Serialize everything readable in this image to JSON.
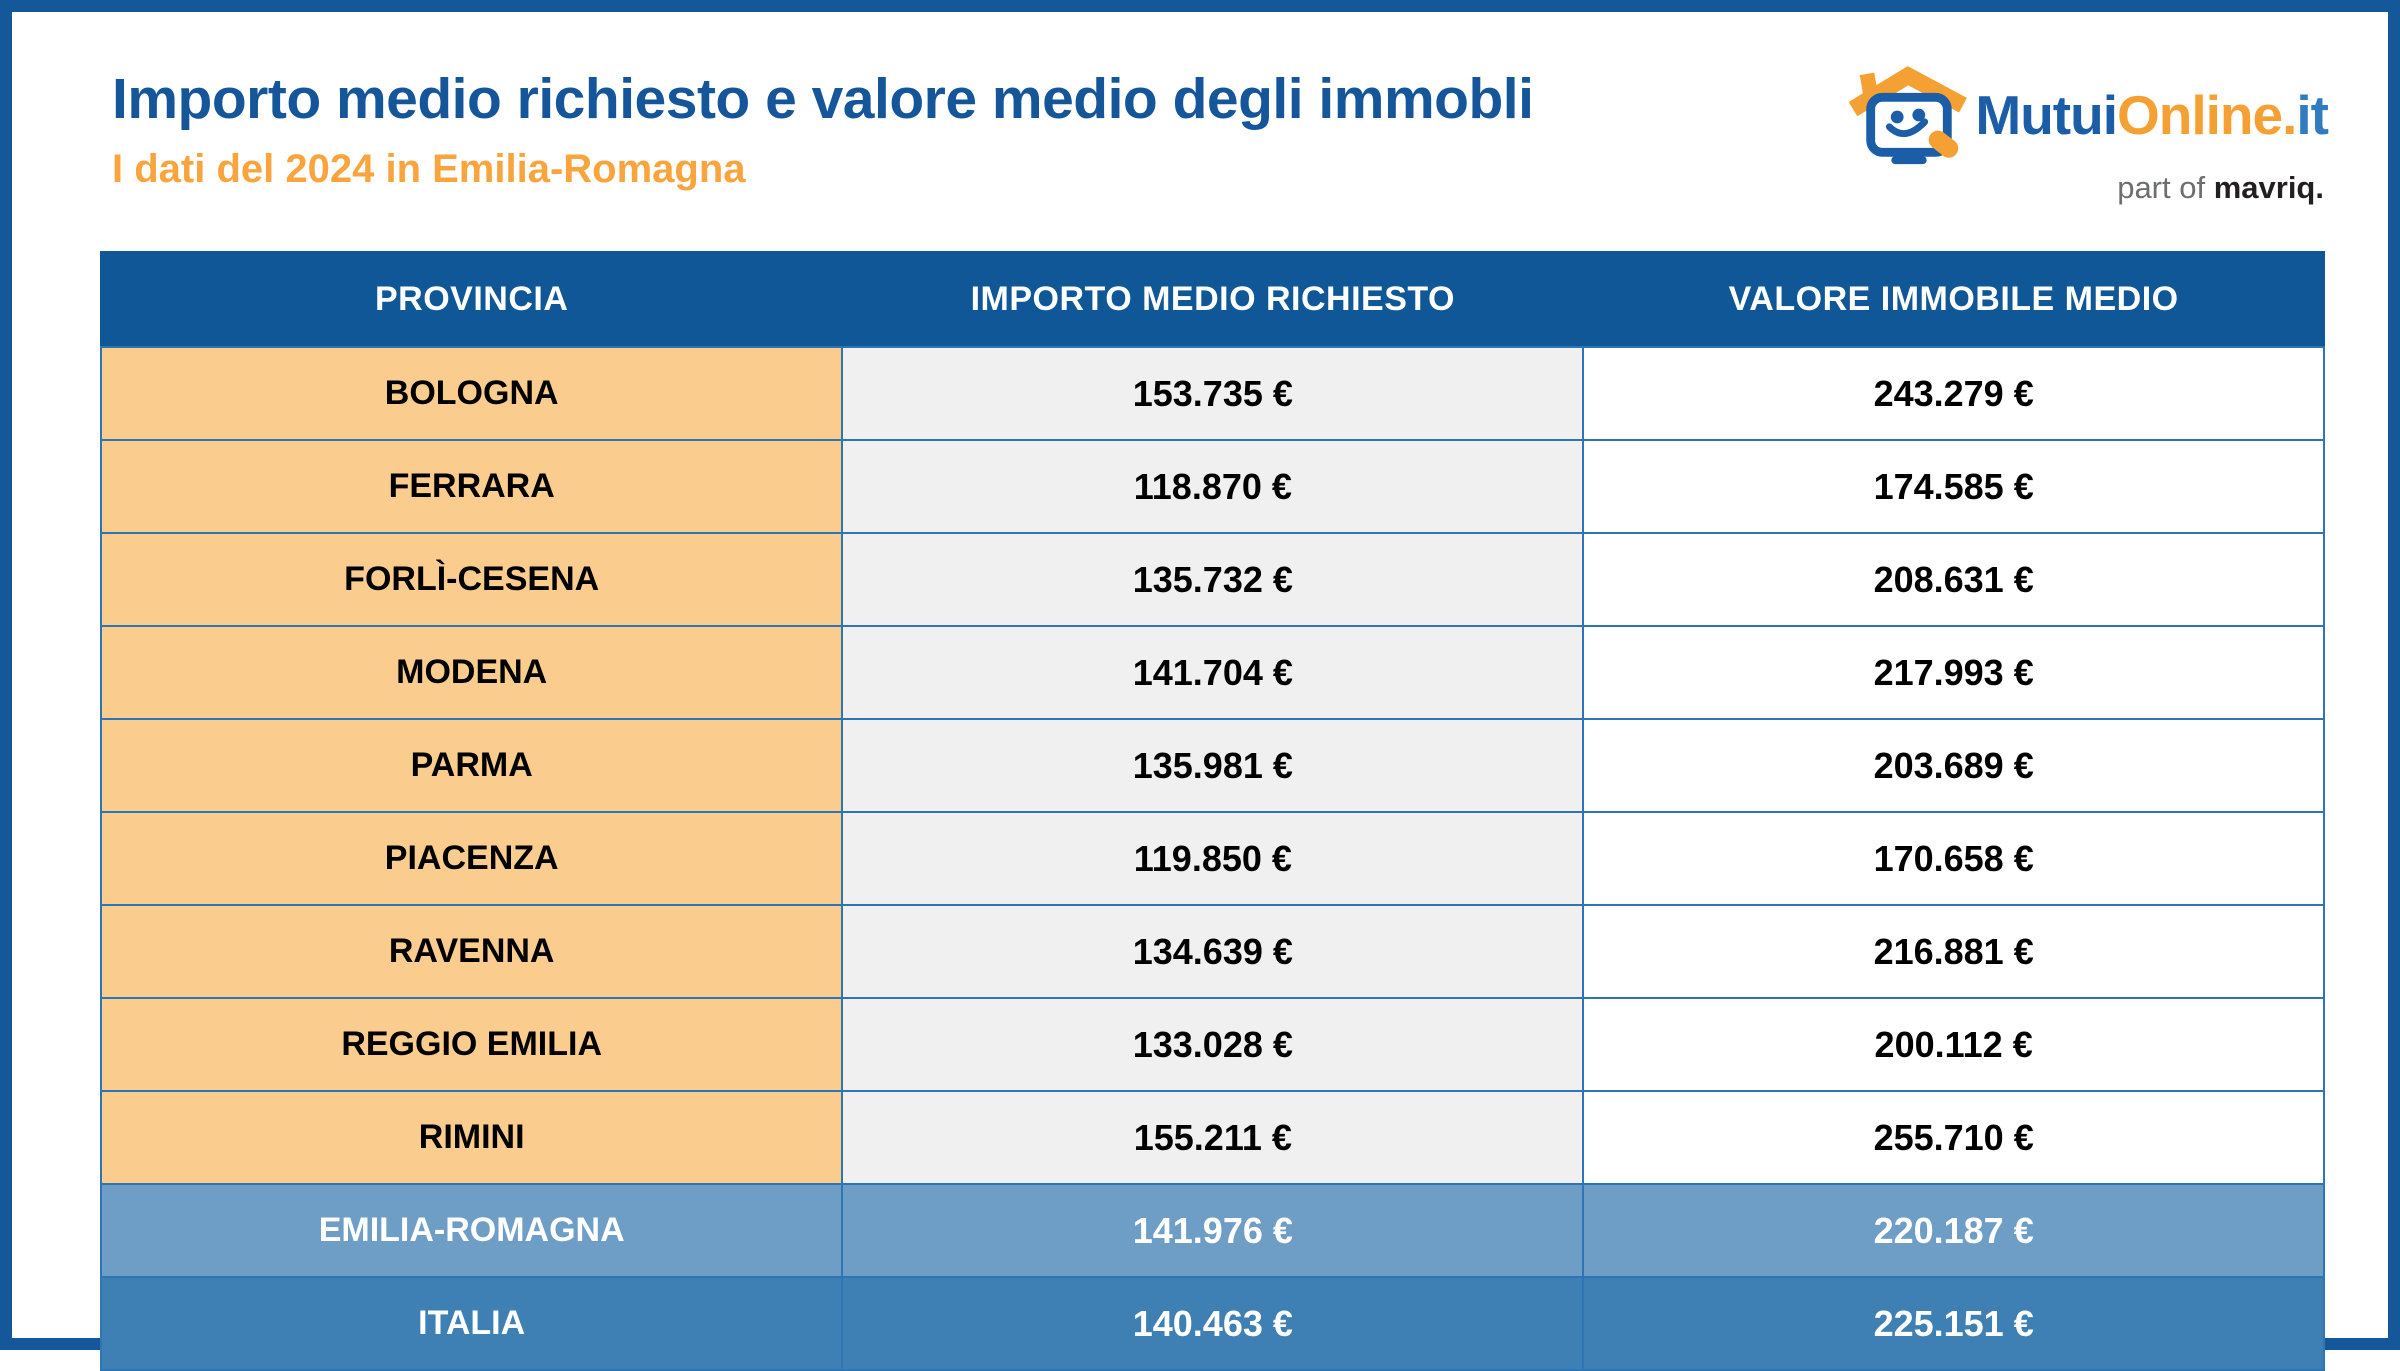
{
  "header": {
    "title": "Importo medio richiesto e valore medio degli immobli",
    "subtitle": "I dati del 2024 in Emilia-Romagna"
  },
  "logo": {
    "brand_mutui": "Mutui",
    "brand_online": "Online",
    "brand_dot": ".",
    "brand_it": "it",
    "tagline_prefix": "part of ",
    "tagline_brand": "mavriq",
    "tagline_period": "."
  },
  "table": {
    "columns": [
      "PROVINCIA",
      "IMPORTO MEDIO RICHIESTO",
      "VALORE IMMOBILE MEDIO"
    ],
    "rows": [
      {
        "type": "province",
        "provincia": "BOLOGNA",
        "importo": "153.735 €",
        "valore": "243.279 €"
      },
      {
        "type": "province",
        "provincia": "FERRARA",
        "importo": "118.870 €",
        "valore": "174.585 €"
      },
      {
        "type": "province",
        "provincia": "FORLÌ-CESENA",
        "importo": "135.732 €",
        "valore": "208.631 €"
      },
      {
        "type": "province",
        "provincia": "MODENA",
        "importo": "141.704 €",
        "valore": "217.993 €"
      },
      {
        "type": "province",
        "provincia": "PARMA",
        "importo": "135.981 €",
        "valore": "203.689 €"
      },
      {
        "type": "province",
        "provincia": "PIACENZA",
        "importo": "119.850 €",
        "valore": "170.658 €"
      },
      {
        "type": "province",
        "provincia": "RAVENNA",
        "importo": "134.639 €",
        "valore": "216.881 €"
      },
      {
        "type": "province",
        "provincia": "REGGIO EMILIA",
        "importo": "133.028 €",
        "valore": "200.112 €"
      },
      {
        "type": "province",
        "provincia": "RIMINI",
        "importo": "155.211 €",
        "valore": "255.710 €"
      },
      {
        "type": "region",
        "provincia": "EMILIA-ROMAGNA",
        "importo": "141.976 €",
        "valore": "220.187 €"
      },
      {
        "type": "country",
        "provincia": "ITALIA",
        "importo": "140.463 €",
        "valore": "225.151 €"
      }
    ]
  },
  "chart_data": {
    "type": "table",
    "title": "Importo medio richiesto e valore medio degli immobli",
    "subtitle": "I dati del 2024 in Emilia-Romagna",
    "columns": [
      "PROVINCIA",
      "IMPORTO MEDIO RICHIESTO",
      "VALORE IMMOBILE MEDIO"
    ],
    "unit": "EUR",
    "rows": [
      [
        "BOLOGNA",
        153735,
        243279
      ],
      [
        "FERRARA",
        118870,
        174585
      ],
      [
        "FORLÌ-CESENA",
        135732,
        208631
      ],
      [
        "MODENA",
        141704,
        217993
      ],
      [
        "PARMA",
        135981,
        203689
      ],
      [
        "PIACENZA",
        119850,
        170658
      ],
      [
        "RAVENNA",
        134639,
        216881
      ],
      [
        "REGGIO EMILIA",
        133028,
        200112
      ],
      [
        "RIMINI",
        155211,
        255710
      ],
      [
        "EMILIA-ROMAGNA",
        141976,
        220187
      ],
      [
        "ITALIA",
        140463,
        225151
      ]
    ]
  },
  "colors": {
    "frame_blue": "#14589A",
    "header_blue": "#0F5796",
    "title_blue": "#15569B",
    "subtitle_orange": "#F9A43C",
    "orange_cell": "#FACD8E",
    "gray_cell": "#F0F0F0",
    "region_blue": "#6E9EC6",
    "italy_blue": "#3E80B4",
    "border_blue": "#2E75B6",
    "logo_blue": "#1C5DA8",
    "logo_orange": "#F5A033",
    "logo_lightblue": "#2F7CC0"
  }
}
